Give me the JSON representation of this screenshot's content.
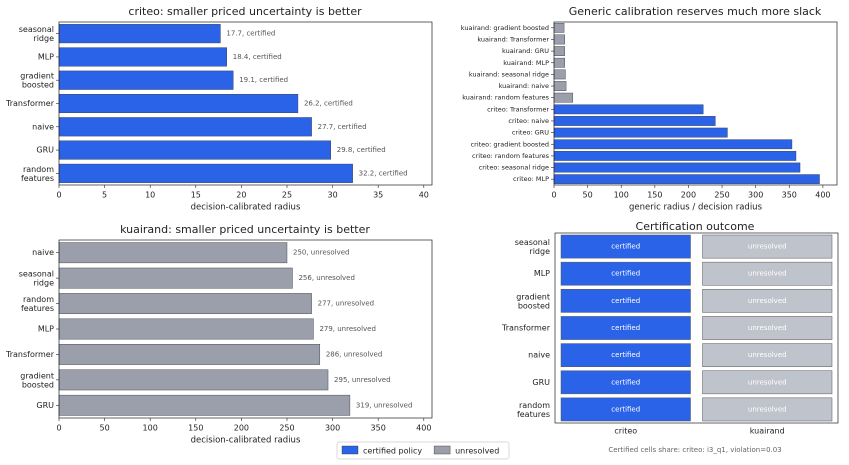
{
  "chart_data": [
    {
      "type": "bar",
      "orientation": "horizontal",
      "title": "criteo: smaller priced uncertainty is better",
      "categories": [
        "seasonal\nridge",
        "MLP",
        "gradient\nboosted",
        "Transformer",
        "naive",
        "GRU",
        "random\nfeatures"
      ],
      "values": [
        17.7,
        18.4,
        19.1,
        26.2,
        27.7,
        29.8,
        32.2
      ],
      "value_labels": [
        "17.7, certified",
        "18.4, certified",
        "19.1, certified",
        "26.2, certified",
        "27.7, certified",
        "29.8, certified",
        "32.2, certified"
      ],
      "color": "#2b63e8",
      "xlim": [
        0,
        40.9
      ],
      "xticks": [
        0,
        5,
        10,
        15,
        20,
        25,
        30,
        35,
        40
      ],
      "xlabel": "decision-calibrated radius"
    },
    {
      "type": "bar",
      "orientation": "horizontal",
      "title": "Generic calibration reserves much more slack",
      "categories": [
        "kuairand: gradient boosted",
        "kuairand: Transformer",
        "kuairand: GRU",
        "kuairand: MLP",
        "kuairand: seasonal ridge",
        "kuairand: naive",
        "kuairand: random features",
        "criteo: Transformer",
        "criteo: naive",
        "criteo: GRU",
        "criteo: gradient boosted",
        "criteo: random features",
        "criteo: seasonal ridge",
        "criteo: MLP"
      ],
      "values": [
        15,
        16,
        16,
        16,
        17,
        18,
        28,
        222,
        240,
        258,
        354,
        360,
        366,
        395
      ],
      "colors": [
        "#9a9fab",
        "#9a9fab",
        "#9a9fab",
        "#9a9fab",
        "#9a9fab",
        "#9a9fab",
        "#9a9fab",
        "#2b63e8",
        "#2b63e8",
        "#2b63e8",
        "#2b63e8",
        "#2b63e8",
        "#2b63e8",
        "#2b63e8"
      ],
      "xlim": [
        0,
        421
      ],
      "xticks": [
        0,
        50,
        100,
        150,
        200,
        250,
        300,
        350,
        400
      ],
      "xlabel": "generic radius / decision radius"
    },
    {
      "type": "bar",
      "orientation": "horizontal",
      "title": "kuairand: smaller priced uncertainty is better",
      "categories": [
        "naive",
        "seasonal\nridge",
        "random\nfeatures",
        "MLP",
        "Transformer",
        "gradient\nboosted",
        "GRU"
      ],
      "values": [
        250,
        256,
        277,
        279,
        286,
        295,
        319
      ],
      "value_labels": [
        "250, unresolved",
        "256, unresolved",
        "277, unresolved",
        "279, unresolved",
        "286, unresolved",
        "295, unresolved",
        "319, unresolved"
      ],
      "color": "#9a9fab",
      "xlim": [
        0,
        409
      ],
      "xticks": [
        0,
        50,
        100,
        150,
        200,
        250,
        300,
        350,
        400
      ],
      "xlabel": "decision-calibrated radius"
    },
    {
      "type": "heatmap",
      "title": "Certification outcome",
      "categories": [
        "seasonal\nridge",
        "MLP",
        "gradient\nboosted",
        "Transformer",
        "naive",
        "GRU",
        "random\nfeatures"
      ],
      "columns": [
        "criteo",
        "kuairand"
      ],
      "cells": [
        [
          "certified",
          "unresolved"
        ],
        [
          "certified",
          "unresolved"
        ],
        [
          "certified",
          "unresolved"
        ],
        [
          "certified",
          "unresolved"
        ],
        [
          "certified",
          "unresolved"
        ],
        [
          "certified",
          "unresolved"
        ],
        [
          "certified",
          "unresolved"
        ]
      ],
      "cell_colors": {
        "certified": "#2b63e8",
        "unresolved": "#bfc3cc"
      },
      "caption": "Certified cells share: criteo: i3_q1, violation=0.03"
    }
  ],
  "legend": [
    {
      "label": "certified policy",
      "color": "#2b63e8"
    },
    {
      "label": "unresolved",
      "color": "#9a9fab"
    }
  ]
}
